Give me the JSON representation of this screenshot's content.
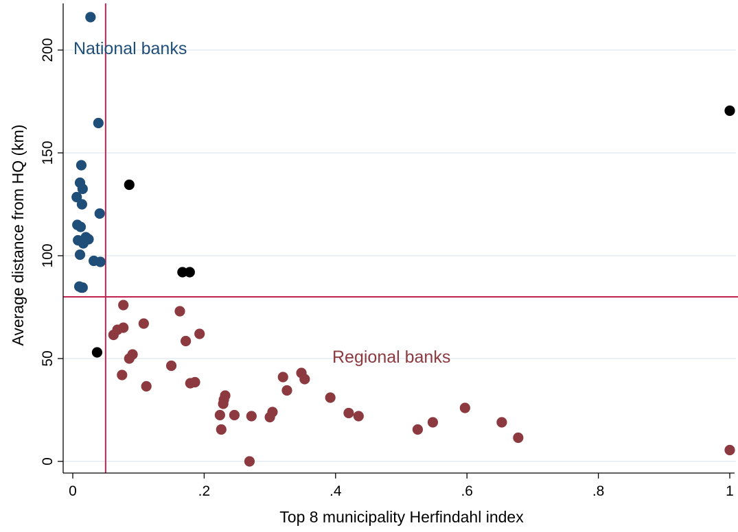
{
  "chart_data": {
    "type": "scatter",
    "title": "",
    "xlabel": "Top 8 municipality Herfindahl index",
    "ylabel": "Average distance from HQ (km)",
    "xlim": [
      0,
      1
    ],
    "ylim": [
      0,
      220
    ],
    "x_ticks": [
      {
        "value": 0,
        "label": "0"
      },
      {
        "value": 0.2,
        "label": ".2"
      },
      {
        "value": 0.4,
        "label": ".4"
      },
      {
        "value": 0.6,
        "label": ".6"
      },
      {
        "value": 0.8,
        "label": ".8"
      },
      {
        "value": 1,
        "label": "1"
      }
    ],
    "y_ticks": [
      {
        "value": 0,
        "label": "0"
      },
      {
        "value": 50,
        "label": "50"
      },
      {
        "value": 100,
        "label": "100"
      },
      {
        "value": 150,
        "label": "150"
      },
      {
        "value": 200,
        "label": "200"
      }
    ],
    "grid": "horizontal",
    "reference_lines": [
      {
        "axis": "x",
        "value": 0.05,
        "color": "#c1224f"
      },
      {
        "axis": "y",
        "value": 80,
        "color": "#c1224f"
      }
    ],
    "annotations": [
      {
        "text": "National banks",
        "x": 0.001,
        "y": 198,
        "color": "#1f4e79"
      },
      {
        "text": "Regional banks",
        "x": 0.395,
        "y": 48,
        "color": "#8c3a3f"
      }
    ],
    "series": [
      {
        "color": "#1f4e79",
        "points": [
          [
            0.027,
            216
          ],
          [
            0.039,
            164.5
          ],
          [
            0.013,
            144
          ],
          [
            0.011,
            135.5
          ],
          [
            0.015,
            132.5
          ],
          [
            0.006,
            128.5
          ],
          [
            0.014,
            125
          ],
          [
            0.041,
            120.5
          ],
          [
            0.007,
            115
          ],
          [
            0.012,
            114
          ],
          [
            0.02,
            109
          ],
          [
            0.024,
            108
          ],
          [
            0.008,
            107.5
          ],
          [
            0.016,
            106
          ],
          [
            0.011,
            100.5
          ],
          [
            0.032,
            97.5
          ],
          [
            0.042,
            97
          ],
          [
            0.01,
            85
          ],
          [
            0.013,
            84.5
          ],
          [
            0.015,
            84.5
          ]
        ]
      },
      {
        "color": "#8c3a3f",
        "points": [
          [
            0.077,
            76
          ],
          [
            0.163,
            73
          ],
          [
            0.108,
            67
          ],
          [
            0.077,
            65
          ],
          [
            0.068,
            64
          ],
          [
            0.062,
            61.5
          ],
          [
            0.193,
            62
          ],
          [
            0.172,
            58.5
          ],
          [
            0.091,
            52
          ],
          [
            0.086,
            50
          ],
          [
            0.15,
            46.5
          ],
          [
            0.075,
            42
          ],
          [
            0.112,
            36.5
          ],
          [
            0.179,
            38
          ],
          [
            0.186,
            38.5
          ],
          [
            0.32,
            41
          ],
          [
            0.348,
            43
          ],
          [
            0.353,
            40
          ],
          [
            0.326,
            34.5
          ],
          [
            0.232,
            32
          ],
          [
            0.23,
            30
          ],
          [
            0.229,
            28
          ],
          [
            0.392,
            31
          ],
          [
            0.42,
            23.5
          ],
          [
            0.435,
            22
          ],
          [
            0.304,
            24
          ],
          [
            0.3,
            21.5
          ],
          [
            0.224,
            22.5
          ],
          [
            0.246,
            22.5
          ],
          [
            0.272,
            22
          ],
          [
            0.226,
            15.5
          ],
          [
            0.597,
            26
          ],
          [
            0.548,
            19
          ],
          [
            0.525,
            15.5
          ],
          [
            0.653,
            19
          ],
          [
            0.678,
            11.5
          ],
          [
            0.269,
            0
          ],
          [
            1.0,
            5.5
          ]
        ]
      },
      {
        "color": "#000000",
        "points": [
          [
            1.0,
            170.5
          ],
          [
            0.086,
            134.5
          ],
          [
            0.167,
            92
          ],
          [
            0.178,
            92
          ],
          [
            0.037,
            53
          ]
        ]
      }
    ]
  }
}
